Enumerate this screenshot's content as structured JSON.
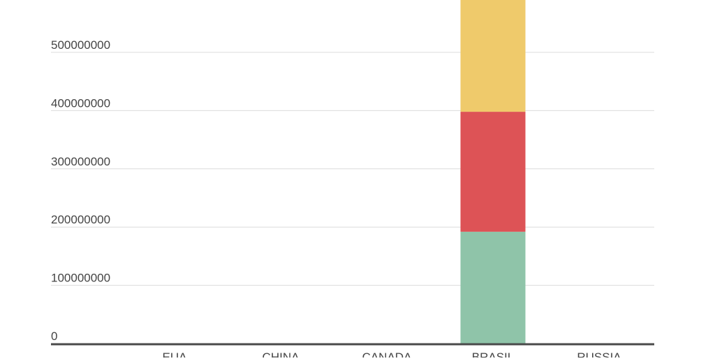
{
  "chart_data": {
    "type": "bar",
    "stacked": true,
    "categories": [
      "EUA",
      "CHINA",
      "CANADA",
      "BRASIL",
      "RUSSIA"
    ],
    "series": [
      {
        "values": [
          0,
          0,
          0,
          192000000,
          0
        ],
        "color": "#8fc4a9"
      },
      {
        "values": [
          0,
          0,
          0,
          206000000,
          0
        ],
        "color": "#dd5356"
      },
      {
        "values": [
          0,
          0,
          0,
          202000000,
          0
        ],
        "color": "#efca6b"
      }
    ],
    "yticks": [
      "0",
      "100000000",
      "200000000",
      "300000000",
      "400000000",
      "500000000"
    ],
    "ylim": [
      0,
      590000000
    ],
    "grid": true,
    "xlabel": "",
    "ylabel": ""
  }
}
